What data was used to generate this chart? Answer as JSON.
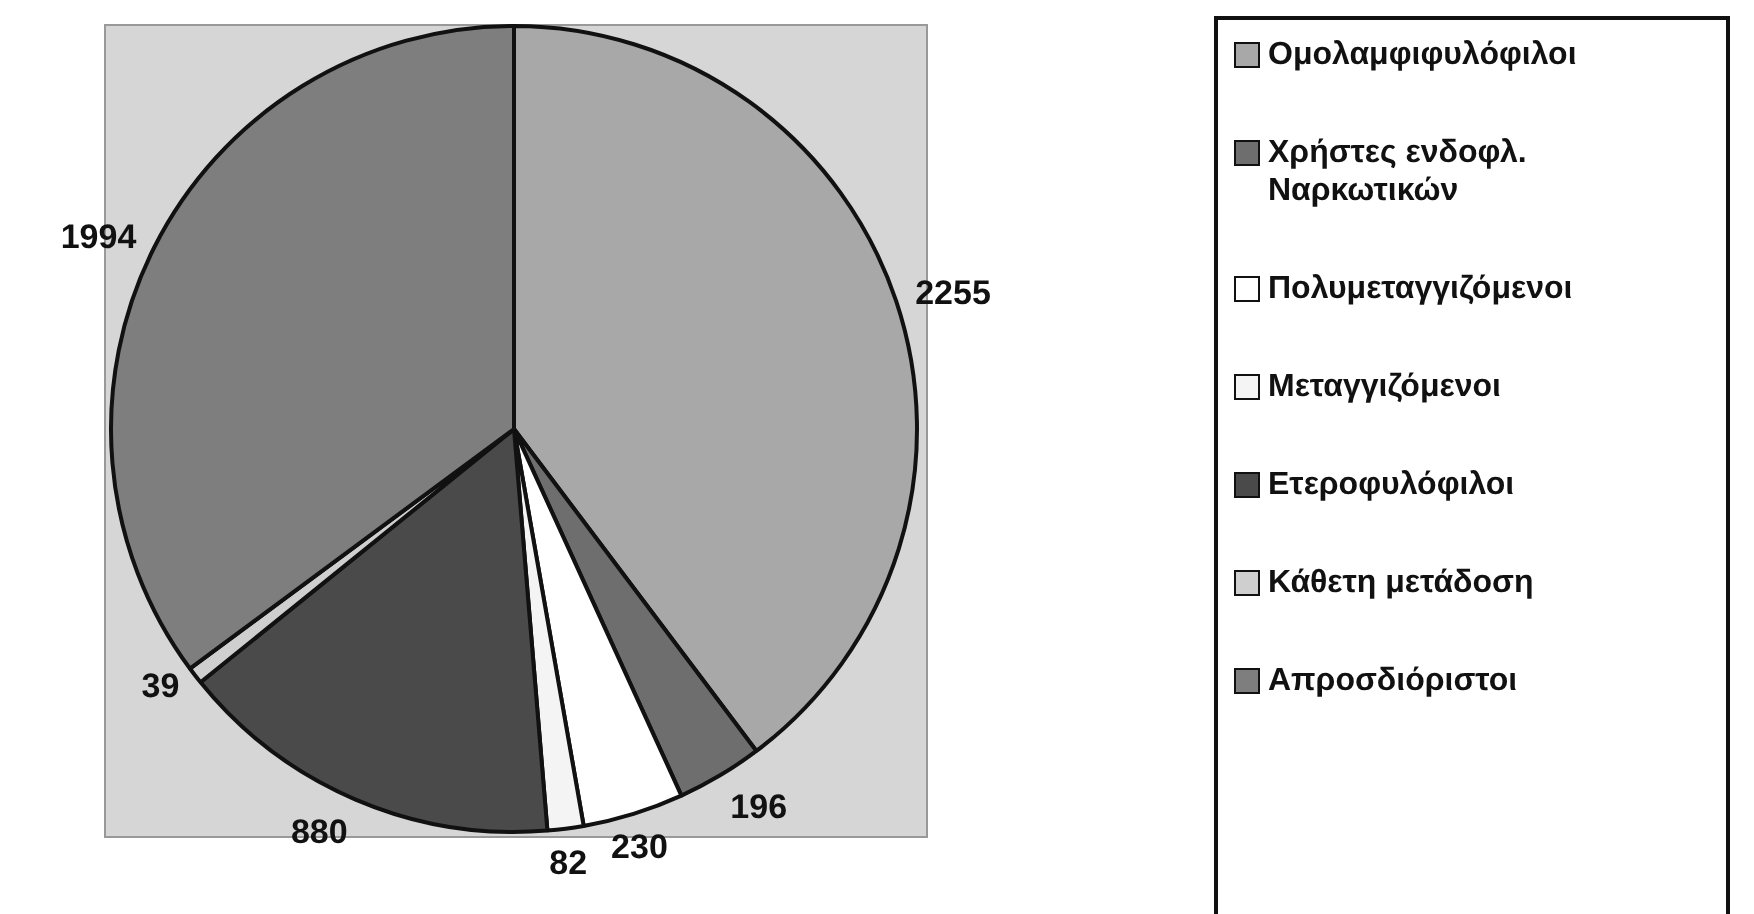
{
  "chart_data": {
    "type": "pie",
    "categories": [
      "Ομολαμφιφυλόφιλοι",
      "Χρήστες ενδοφλ. Ναρκωτικών",
      "Πολυμεταγγιζόμενοι",
      "Μεταγγιζόμενοι",
      "Ετεροφυλόφιλοι",
      "Κάθετη μετάδοση",
      "Απροσδιόριστοι"
    ],
    "values": [
      2255,
      196,
      230,
      82,
      880,
      39,
      1994
    ],
    "colors": [
      "#a8a8a8",
      "#6e6e6e",
      "#ffffff",
      "#f4f4f4",
      "#4a4a4a",
      "#cfcfcf",
      "#7e7e7e"
    ],
    "data_labels": true,
    "legend": "right"
  }
}
